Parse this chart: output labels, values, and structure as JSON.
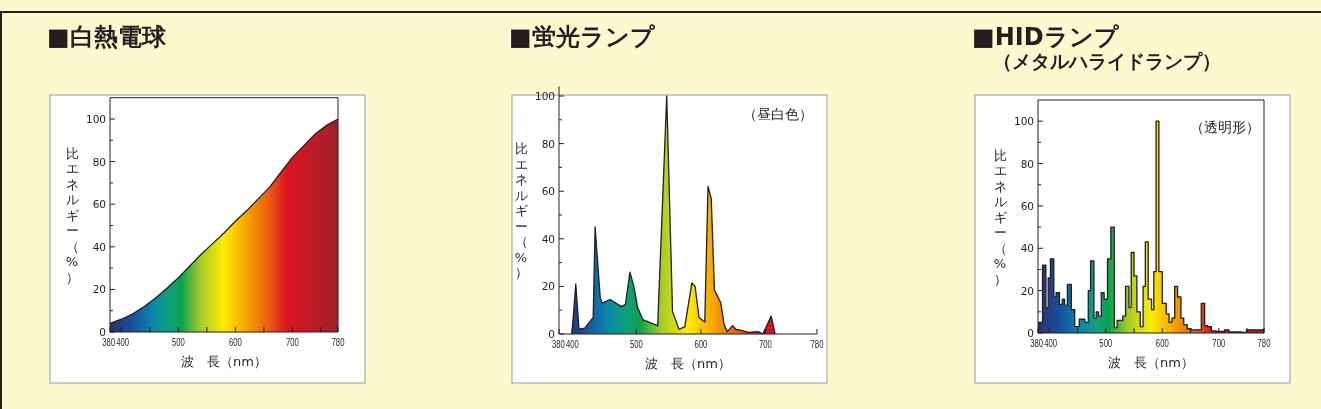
{
  "chart_data": [
    {
      "type": "area",
      "title": "■白熱電球",
      "xlabel": "波　長（nm）",
      "ylabel": "比エネルギー（%）",
      "color": "#231f20",
      "x": [
        380,
        400,
        420,
        440,
        460,
        480,
        500,
        520,
        540,
        560,
        580,
        600,
        620,
        640,
        660,
        680,
        700,
        720,
        740,
        760,
        780
      ],
      "values": [
        4,
        6,
        8.5,
        12,
        16,
        20.5,
        25.5,
        31,
        36.5,
        41.5,
        46.5,
        52,
        57,
        62.5,
        68,
        75,
        82,
        87.5,
        93,
        97,
        100
      ],
      "xlim": [
        380,
        780
      ],
      "xticks": [
        380,
        400,
        {
          "value": 450,
          "label": null
        },
        500,
        {
          "value": 550,
          "label": null
        },
        600,
        {
          "value": 650,
          "label": null
        },
        700,
        {
          "value": 750,
          "label": null
        },
        780
      ],
      "ylim": [
        0,
        110
      ],
      "yticks": [
        0,
        {
          "value": 10,
          "label": null
        },
        20,
        {
          "value": 30,
          "label": null
        },
        40,
        {
          "value": 50,
          "label": null
        },
        60,
        {
          "value": 70,
          "label": null
        },
        80,
        {
          "value": 90,
          "label": null
        },
        100
      ]
    },
    {
      "type": "area",
      "title": "■蛍光ランプ",
      "xlabel": "波　長（nm）",
      "ylabel": "比エネルギー（%）",
      "color": "#231f20",
      "annotations": [
        "（昼白色）"
      ],
      "x": [
        400,
        406,
        411,
        420,
        433,
        436,
        444,
        447,
        459,
        477,
        483,
        490,
        496,
        502,
        510,
        524,
        533,
        547,
        556,
        566,
        575,
        586,
        591,
        597,
        606,
        611,
        616,
        621,
        631,
        636,
        641,
        649,
        654,
        663,
        674,
        689,
        696,
        709,
        715
      ],
      "values": [
        0,
        21,
        2,
        2.5,
        7,
        45,
        15,
        13,
        14.5,
        11.5,
        12.5,
        26,
        20,
        11,
        6,
        4.5,
        3.5,
        100,
        9.5,
        2,
        3,
        21.5,
        20,
        7,
        5,
        62,
        57,
        18.5,
        13,
        4,
        1,
        3.5,
        2,
        1.5,
        0.7,
        1,
        0,
        7.5,
        0
      ],
      "xlim": [
        380,
        780
      ],
      "xticks": [
        380,
        400,
        500,
        600,
        700,
        780
      ],
      "ylim": [
        0,
        104
      ],
      "yticks": [
        0,
        {
          "value": 10,
          "label": null
        },
        20,
        {
          "value": 30,
          "label": null
        },
        40,
        {
          "value": 50,
          "label": null
        },
        60,
        {
          "value": 70,
          "label": null
        },
        80,
        {
          "value": 90,
          "label": null
        },
        100
      ]
    },
    {
      "type": "step",
      "title": "■HIDランプ",
      "subtitle": "（メタルハライドランプ）",
      "xlabel": "波　長（nm）",
      "ylabel": "比エネルギー（%）",
      "color": "#231f20",
      "annotations": [
        "（透明形）"
      ],
      "x": [
        380,
        388,
        394,
        398,
        402,
        408,
        412,
        418,
        423,
        427,
        432,
        439,
        445,
        453,
        463,
        469,
        473,
        479,
        483,
        487,
        492,
        497,
        503,
        509,
        515,
        520,
        530,
        535,
        541,
        545,
        550,
        555,
        561,
        566,
        570,
        575,
        581,
        585,
        589,
        594,
        600,
        607,
        612,
        617,
        622,
        627,
        633,
        638,
        644,
        651,
        669,
        675,
        680,
        687,
        696,
        710,
        718,
        740,
        749,
        780
      ],
      "values": [
        5,
        32,
        12,
        26,
        35,
        17,
        19,
        13.5,
        16,
        13,
        23,
        11,
        3,
        6.5,
        5,
        20,
        34,
        7,
        10,
        8,
        19,
        16,
        35,
        50,
        2.5,
        6,
        8,
        22,
        12,
        38,
        27,
        10,
        3,
        22,
        43,
        16,
        11,
        29,
        100,
        29,
        14,
        9,
        5,
        7,
        22,
        17,
        7,
        4,
        2,
        1.5,
        14,
        3.5,
        3,
        1,
        0.8,
        1.5,
        0.5,
        0.3,
        1.5,
        1.5
      ],
      "xlim": [
        380,
        780
      ],
      "xticks": [
        380,
        400,
        {
          "value": 450,
          "label": null
        },
        500,
        {
          "value": 550,
          "label": null
        },
        600,
        {
          "value": 650,
          "label": null
        },
        700,
        {
          "value": 750,
          "label": null
        },
        780
      ],
      "ylim": [
        0,
        110
      ],
      "yticks": [
        0,
        {
          "value": 10,
          "label": null
        },
        20,
        {
          "value": 30,
          "label": null
        },
        40,
        {
          "value": 50,
          "label": null
        },
        60,
        {
          "value": 70,
          "label": null
        },
        80,
        {
          "value": 90,
          "label": null
        },
        100
      ]
    }
  ]
}
